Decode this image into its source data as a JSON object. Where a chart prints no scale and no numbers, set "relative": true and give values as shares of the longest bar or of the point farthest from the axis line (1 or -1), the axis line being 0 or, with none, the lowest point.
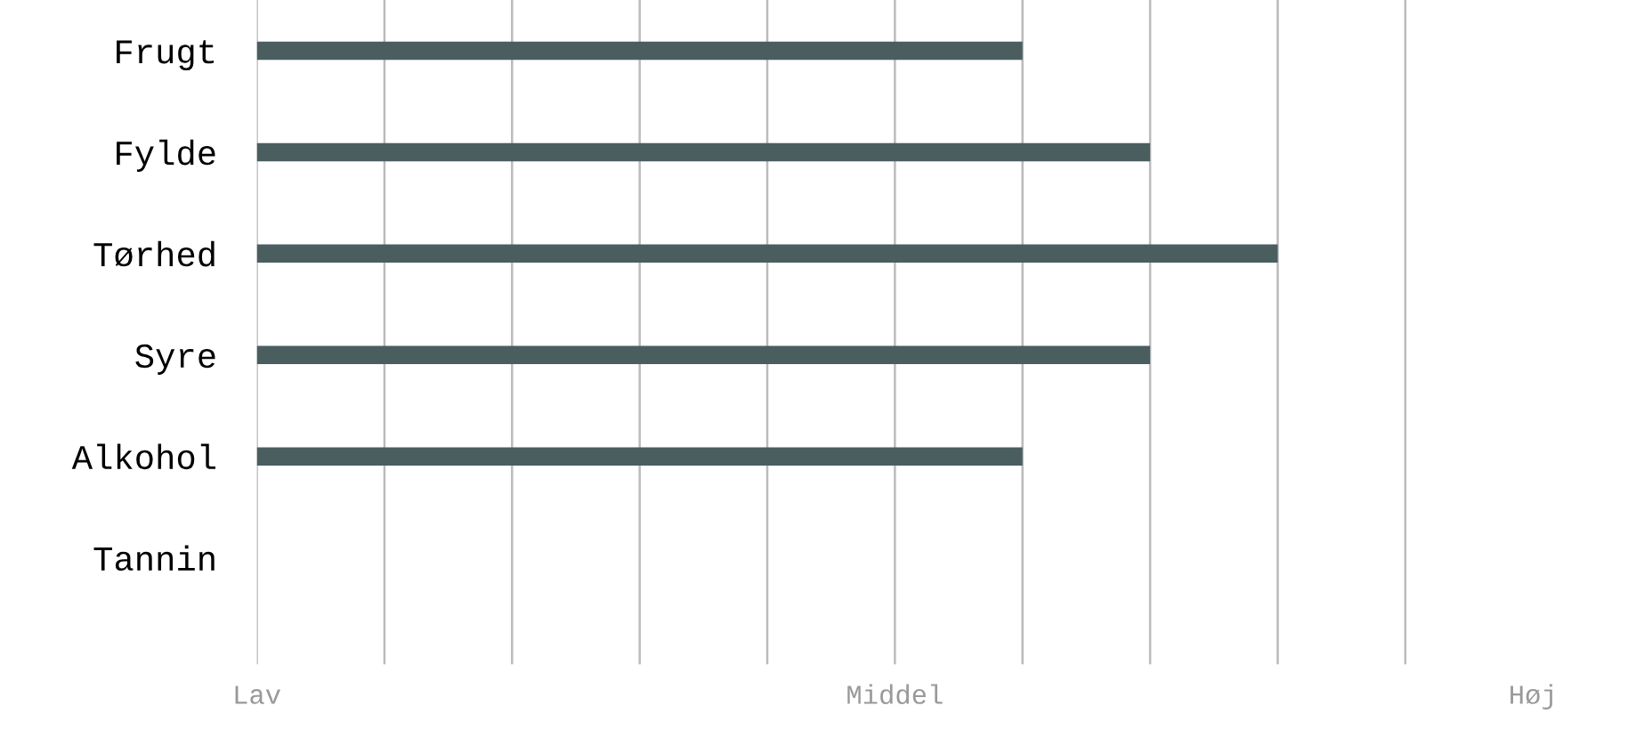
{
  "chart_data": {
    "type": "bar",
    "orientation": "horizontal",
    "relative": true,
    "categories": [
      "Frugt",
      "Fylde",
      "Tørhed",
      "Syre",
      "Alkohol",
      "Tannin"
    ],
    "values": [
      0.75,
      0.875,
      1,
      0.875,
      0.75,
      null
    ],
    "color": "#4a5e60",
    "annotations": [
      "Lav",
      "Middel",
      "Høj"
    ],
    "grid": "x"
  }
}
